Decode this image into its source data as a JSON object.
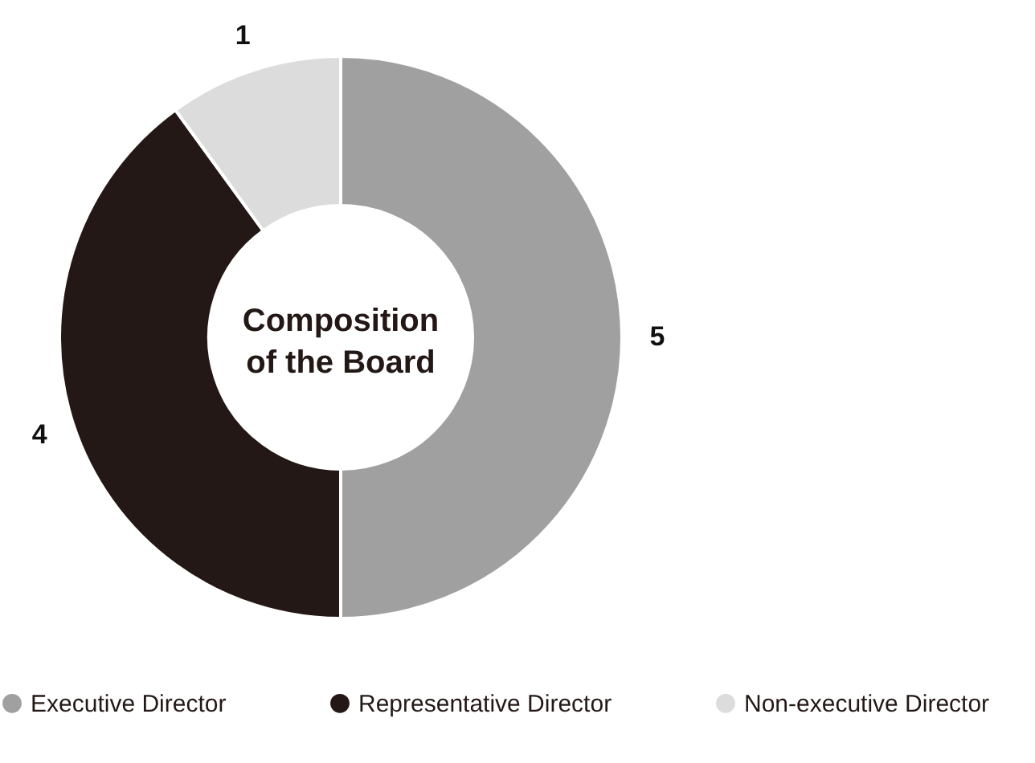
{
  "chart_data": {
    "type": "donut",
    "title": "Composition\nof the Board",
    "categories": [
      "Executive Director",
      "Representative Director",
      "Non-executive Director"
    ],
    "values": [
      5,
      4,
      1
    ],
    "colors": [
      "#a0a0a0",
      "#231815",
      "#dcdcdc"
    ],
    "data_labels": true,
    "legend": "bottom"
  }
}
